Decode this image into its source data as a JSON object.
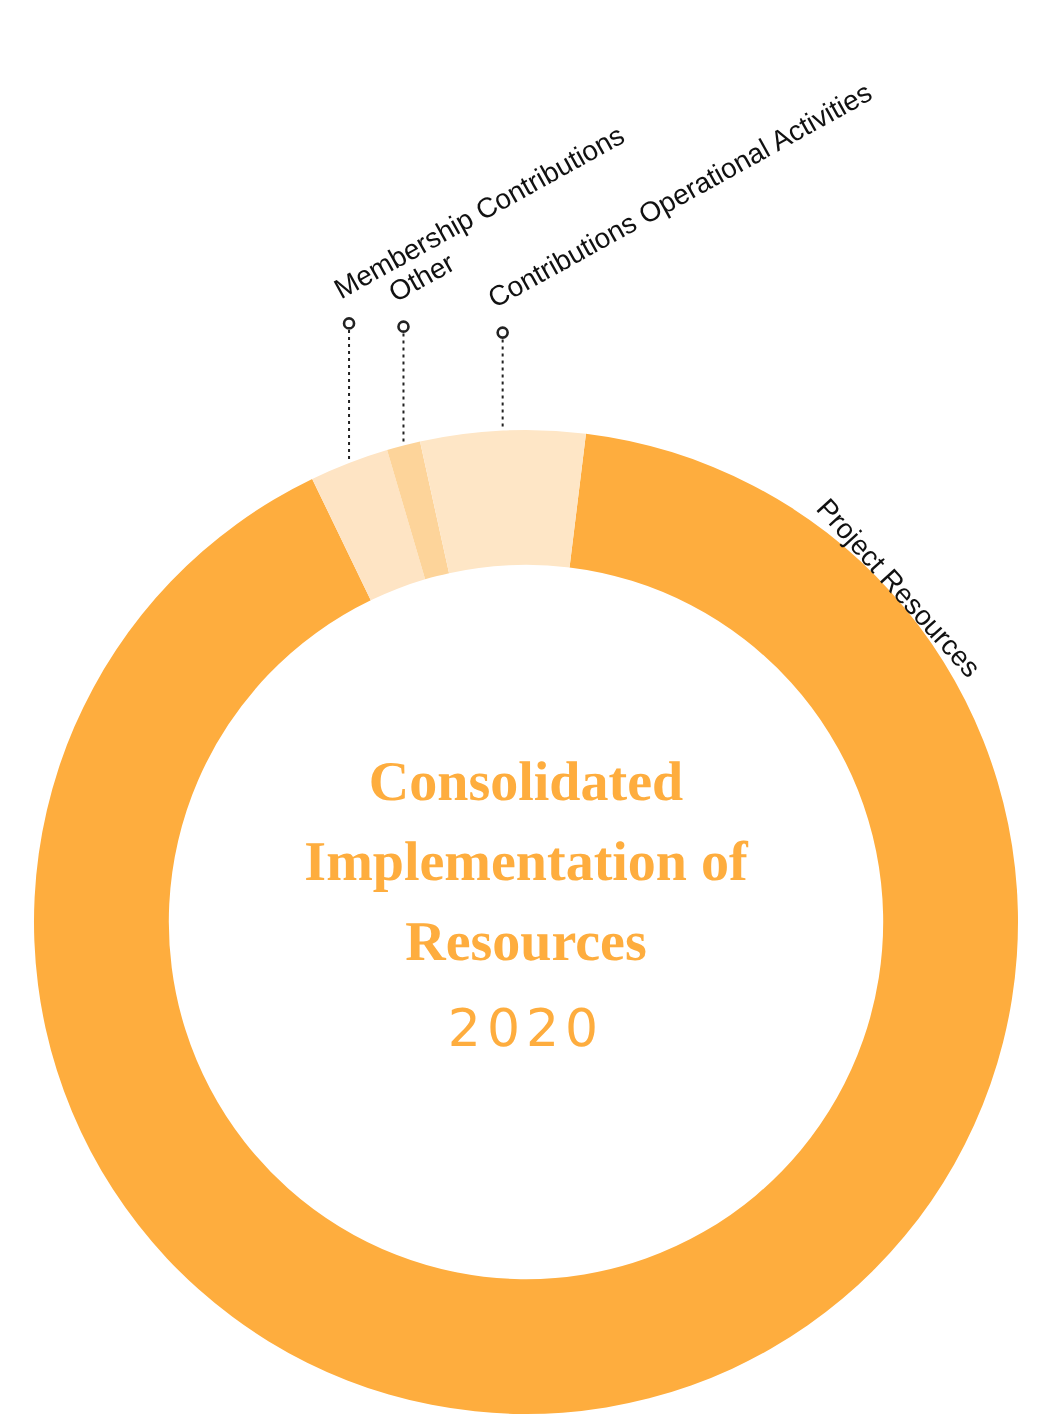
{
  "chart_data": {
    "type": "donut",
    "title": "Consolidated Implementation of Resources",
    "subtitle": "2020",
    "categories": [
      "Project Resources",
      "Membership Contributions",
      "Other",
      "Contributions Operational Activities"
    ],
    "values": [
      90.9,
      2.6,
      1.1,
      5.4
    ],
    "colors": [
      "#fead3e",
      "#fee4c4",
      "#fdd49a",
      "#fee6c6"
    ],
    "legend": false
  }
}
